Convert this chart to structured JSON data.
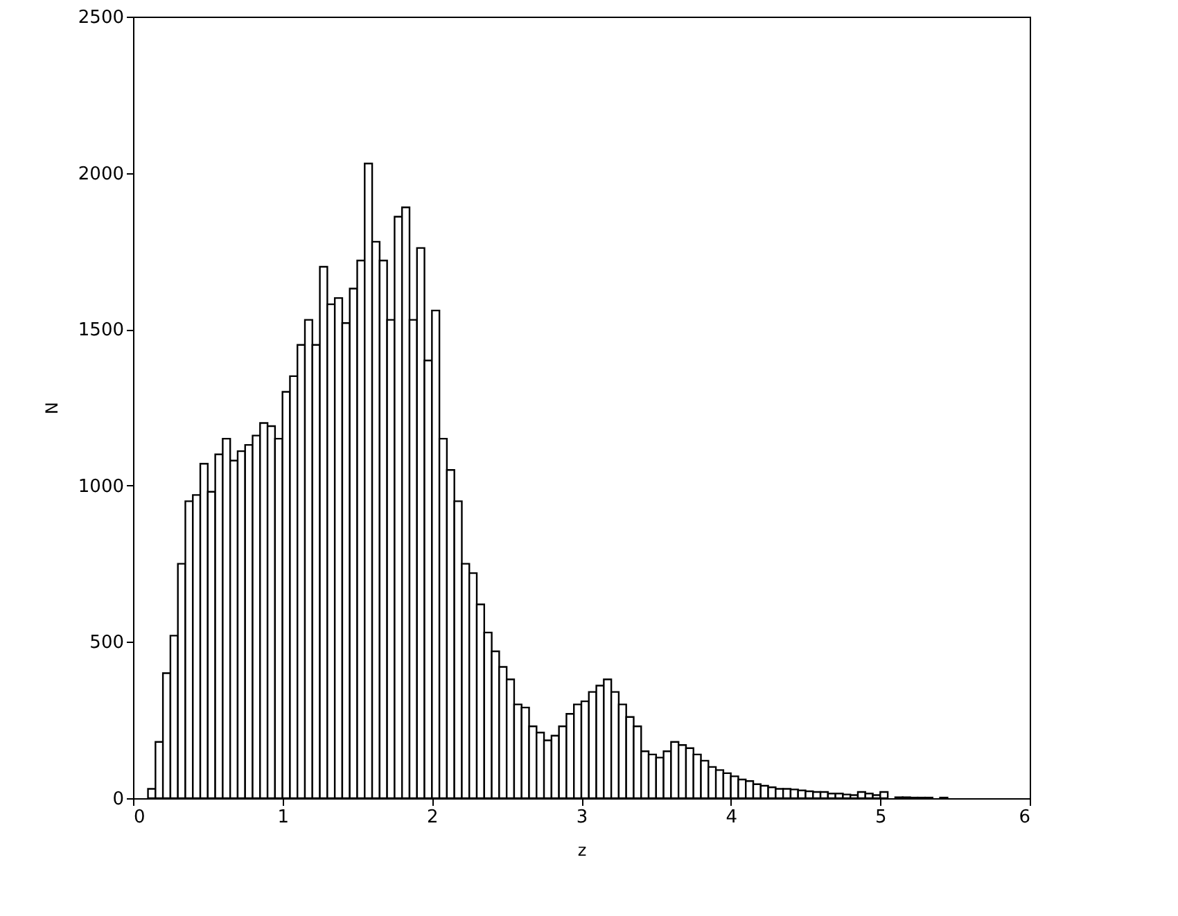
{
  "chart_data": {
    "type": "histogram",
    "xlabel": "z",
    "ylabel": "N",
    "color": "#000000",
    "bins": [
      0.1,
      0.15,
      0.2,
      0.25,
      0.3,
      0.35,
      0.4,
      0.45,
      0.5,
      0.55,
      0.6,
      0.65,
      0.7,
      0.75,
      0.8,
      0.85,
      0.9,
      0.95,
      1.0,
      1.05,
      1.1,
      1.15,
      1.2,
      1.25,
      1.3,
      1.35,
      1.4,
      1.45,
      1.5,
      1.55,
      1.6,
      1.65,
      1.7,
      1.75,
      1.8,
      1.85,
      1.9,
      1.95,
      2.0,
      2.05,
      2.1,
      2.15,
      2.2,
      2.25,
      2.3,
      2.35,
      2.4,
      2.45,
      2.5,
      2.55,
      2.6,
      2.65,
      2.7,
      2.75,
      2.8,
      2.85,
      2.9,
      2.95,
      3.0,
      3.05,
      3.1,
      3.15,
      3.2,
      3.25,
      3.3,
      3.35,
      3.4,
      3.45,
      3.5,
      3.55,
      3.6,
      3.65,
      3.7,
      3.75,
      3.8,
      3.85,
      3.9,
      3.95,
      4.0,
      4.05,
      4.1,
      4.15,
      4.2,
      4.25,
      4.3,
      4.35,
      4.4,
      4.45,
      4.5,
      4.55,
      4.6,
      4.65,
      4.7,
      4.75,
      4.8,
      4.85,
      4.9,
      4.95,
      5.0,
      5.05,
      5.1,
      5.15,
      5.2,
      5.25,
      5.3,
      5.35,
      5.4,
      5.45,
      5.5
    ],
    "values": [
      30,
      180,
      400,
      520,
      750,
      950,
      970,
      1070,
      980,
      1100,
      1150,
      1080,
      1110,
      1130,
      1160,
      1200,
      1190,
      1150,
      1300,
      1350,
      1450,
      1530,
      1450,
      1700,
      1580,
      1600,
      1520,
      1630,
      1720,
      2030,
      1780,
      1720,
      1530,
      1860,
      1890,
      1530,
      1760,
      1400,
      1560,
      1150,
      1050,
      950,
      750,
      720,
      620,
      530,
      470,
      420,
      380,
      300,
      290,
      230,
      210,
      185,
      200,
      230,
      270,
      300,
      310,
      340,
      360,
      380,
      340,
      300,
      260,
      230,
      150,
      140,
      130,
      150,
      180,
      170,
      160,
      140,
      120,
      100,
      90,
      80,
      70,
      60,
      55,
      45,
      40,
      35,
      30,
      30,
      28,
      25,
      22,
      20,
      20,
      15,
      15,
      12,
      10,
      20,
      15,
      10,
      20,
      null,
      3,
      3,
      2,
      2,
      2,
      null,
      2,
      null
    ],
    "xlim": [
      0,
      6
    ],
    "xticks": [
      0,
      1,
      2,
      3,
      4,
      5,
      6
    ],
    "ylim": [
      0,
      2500
    ],
    "yticks": [
      0,
      500,
      1000,
      1500,
      2000,
      2500
    ]
  }
}
